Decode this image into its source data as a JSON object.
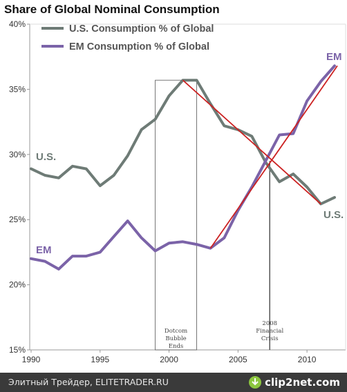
{
  "chart_data": {
    "type": "line",
    "title": "Share of Global Nominal Consumption",
    "xlabel": "",
    "ylabel": "",
    "xlim": [
      1989.9,
      2012.8
    ],
    "ylim": [
      15,
      40
    ],
    "x_ticks": [
      1990,
      1995,
      2000,
      2005,
      2010
    ],
    "x_tick_labels": [
      "1990",
      "1995",
      "2000",
      "2005",
      "2010"
    ],
    "y_ticks": [
      15,
      20,
      25,
      30,
      35,
      40
    ],
    "y_tick_labels": [
      "15%",
      "20%",
      "25%",
      "30%",
      "35%",
      "40%"
    ],
    "grid": false,
    "legend_position": "top-left",
    "series": [
      {
        "name": "U.S. Consumption % of Global",
        "color": "#6e7b76",
        "end_label": "U.S.",
        "start_label": "U.S.",
        "x": [
          1990,
          1991,
          1992,
          1993,
          1994,
          1995,
          1996,
          1997,
          1998,
          1999,
          2000,
          2001,
          2002,
          2003,
          2004,
          2005,
          2006,
          2007,
          2008,
          2009,
          2010,
          2011,
          2012
        ],
        "values": [
          28.9,
          28.4,
          28.2,
          29.1,
          28.9,
          27.6,
          28.4,
          29.9,
          31.9,
          32.7,
          34.5,
          35.7,
          35.7,
          33.9,
          32.2,
          31.9,
          31.4,
          29.4,
          27.9,
          28.5,
          27.5,
          26.2,
          26.7
        ]
      },
      {
        "name": "EM Consumption % of Global",
        "color": "#7b63a8",
        "end_label": "EM",
        "start_label": "EM",
        "x": [
          1990,
          1991,
          1992,
          1993,
          1994,
          1995,
          1996,
          1997,
          1998,
          1999,
          2000,
          2001,
          2002,
          2003,
          2004,
          2005,
          2006,
          2007,
          2008,
          2009,
          2010,
          2011,
          2012
        ],
        "values": [
          22.0,
          21.8,
          21.2,
          22.2,
          22.2,
          22.5,
          23.7,
          24.9,
          23.6,
          22.6,
          23.2,
          23.3,
          23.1,
          22.8,
          23.6,
          25.7,
          27.5,
          29.5,
          31.5,
          31.6,
          34.1,
          35.6,
          36.8
        ]
      }
    ],
    "trend_lines": [
      {
        "color": "#cc2222",
        "x": [
          2001,
          2011
        ],
        "values": [
          35.7,
          26.2
        ]
      },
      {
        "color": "#cc2222",
        "x": [
          2003,
          2012.2
        ],
        "values": [
          22.8,
          36.8
        ]
      }
    ],
    "annotations": [
      {
        "lines": [
          "Dotcom",
          "Bubble",
          "Ends"
        ],
        "x_range": [
          1999,
          2002
        ],
        "y_top": 35.7
      },
      {
        "lines": [
          "2008",
          "Financial",
          "Crisis"
        ],
        "x": 2007.3
      }
    ]
  },
  "footer": {
    "text": "Элитный Трейдер, ELITETRADER.RU",
    "logo_text": "clip2net.com",
    "logo_icon": "download-arrow-icon"
  }
}
